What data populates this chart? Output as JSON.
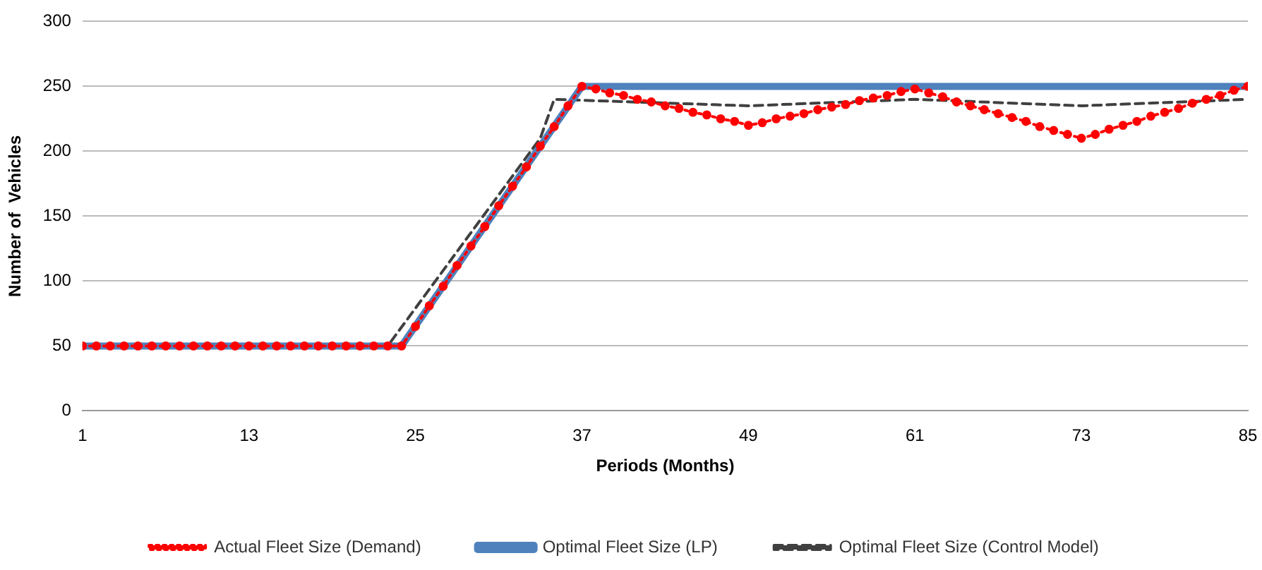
{
  "chart_data": {
    "type": "line",
    "xlabel": "Periods (Months)",
    "ylabel": "Number of  Vehicles",
    "xlim": [
      1,
      85
    ],
    "xticks": [
      1,
      13,
      25,
      37,
      49,
      61,
      73,
      85
    ],
    "ylim": [
      0,
      300
    ],
    "yticks": [
      0,
      50,
      100,
      150,
      200,
      250,
      300
    ],
    "grid": "y",
    "legend": "bottom",
    "series": [
      {
        "name": "Actual Fleet Size (Demand)",
        "color": "#ff0000",
        "marker": "circle",
        "line_style": "dotted",
        "x": [
          1,
          2,
          3,
          4,
          5,
          6,
          7,
          8,
          9,
          10,
          11,
          12,
          13,
          14,
          15,
          16,
          17,
          18,
          19,
          20,
          21,
          22,
          23,
          24,
          25,
          26,
          27,
          28,
          29,
          30,
          31,
          32,
          33,
          34,
          35,
          36,
          37,
          38,
          39,
          40,
          41,
          42,
          43,
          44,
          45,
          46,
          47,
          48,
          49,
          50,
          51,
          52,
          53,
          54,
          55,
          56,
          57,
          58,
          59,
          60,
          61,
          62,
          63,
          64,
          65,
          66,
          67,
          68,
          69,
          70,
          71,
          72,
          73,
          74,
          75,
          76,
          77,
          78,
          79,
          80,
          81,
          82,
          83,
          84,
          85
        ],
        "values": [
          50,
          50,
          50,
          50,
          50,
          50,
          50,
          50,
          50,
          50,
          50,
          50,
          50,
          50,
          50,
          50,
          50,
          50,
          50,
          50,
          50,
          50,
          50,
          50,
          65,
          81,
          96,
          112,
          127,
          142,
          158,
          173,
          188,
          204,
          219,
          235,
          250,
          248,
          245,
          243,
          240,
          238,
          235,
          233,
          230,
          228,
          225,
          223,
          220,
          222,
          225,
          227,
          229,
          232,
          234,
          236,
          239,
          241,
          243,
          246,
          248,
          245,
          242,
          238,
          235,
          232,
          229,
          226,
          223,
          219,
          216,
          213,
          210,
          213,
          217,
          220,
          223,
          227,
          230,
          233,
          237,
          240,
          243,
          247,
          250
        ]
      },
      {
        "name": "Optimal Fleet Size (LP)",
        "color": "#4f81bd",
        "marker": "none",
        "line_style": "solid",
        "x": [
          1,
          24,
          37,
          85
        ],
        "values": [
          50,
          50,
          250,
          250
        ]
      },
      {
        "name": "Optimal Fleet Size (Control Model)",
        "color": "#404040",
        "marker": "none",
        "line_style": "dashed",
        "x": [
          1,
          23,
          34,
          35,
          49,
          61,
          73,
          85
        ],
        "values": [
          50,
          50,
          210,
          240,
          235,
          240,
          235,
          240
        ]
      }
    ]
  }
}
